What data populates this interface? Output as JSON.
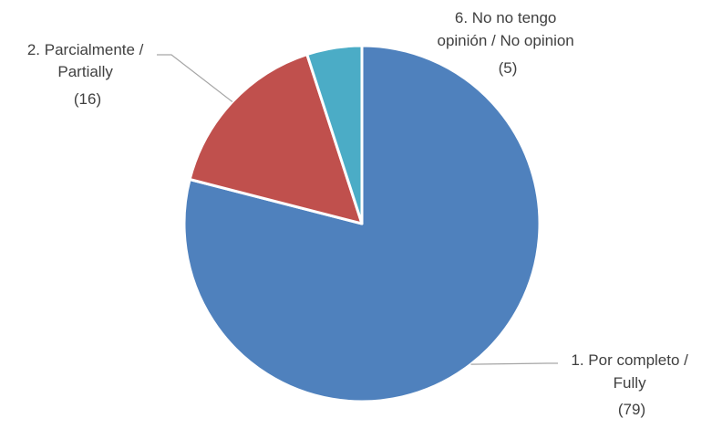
{
  "chart_data": {
    "type": "pie",
    "title": "",
    "categories": [
      "1. Por completo / Fully",
      "2. Parcialmente / Partially",
      "6. No no tengo opinión / No opinion"
    ],
    "values": [
      79,
      16,
      5
    ],
    "colors": [
      "#4F81BD",
      "#C0504D",
      "#4BACC6"
    ],
    "label_lines": [
      [
        "1. Por completo /",
        "Fully",
        "(79)"
      ],
      [
        "2. Parcialmente /",
        "Partially",
        "(16)"
      ],
      [
        "6. No no tengo",
        "opinión / No opinion",
        "(5)"
      ]
    ],
    "legend": "none"
  }
}
